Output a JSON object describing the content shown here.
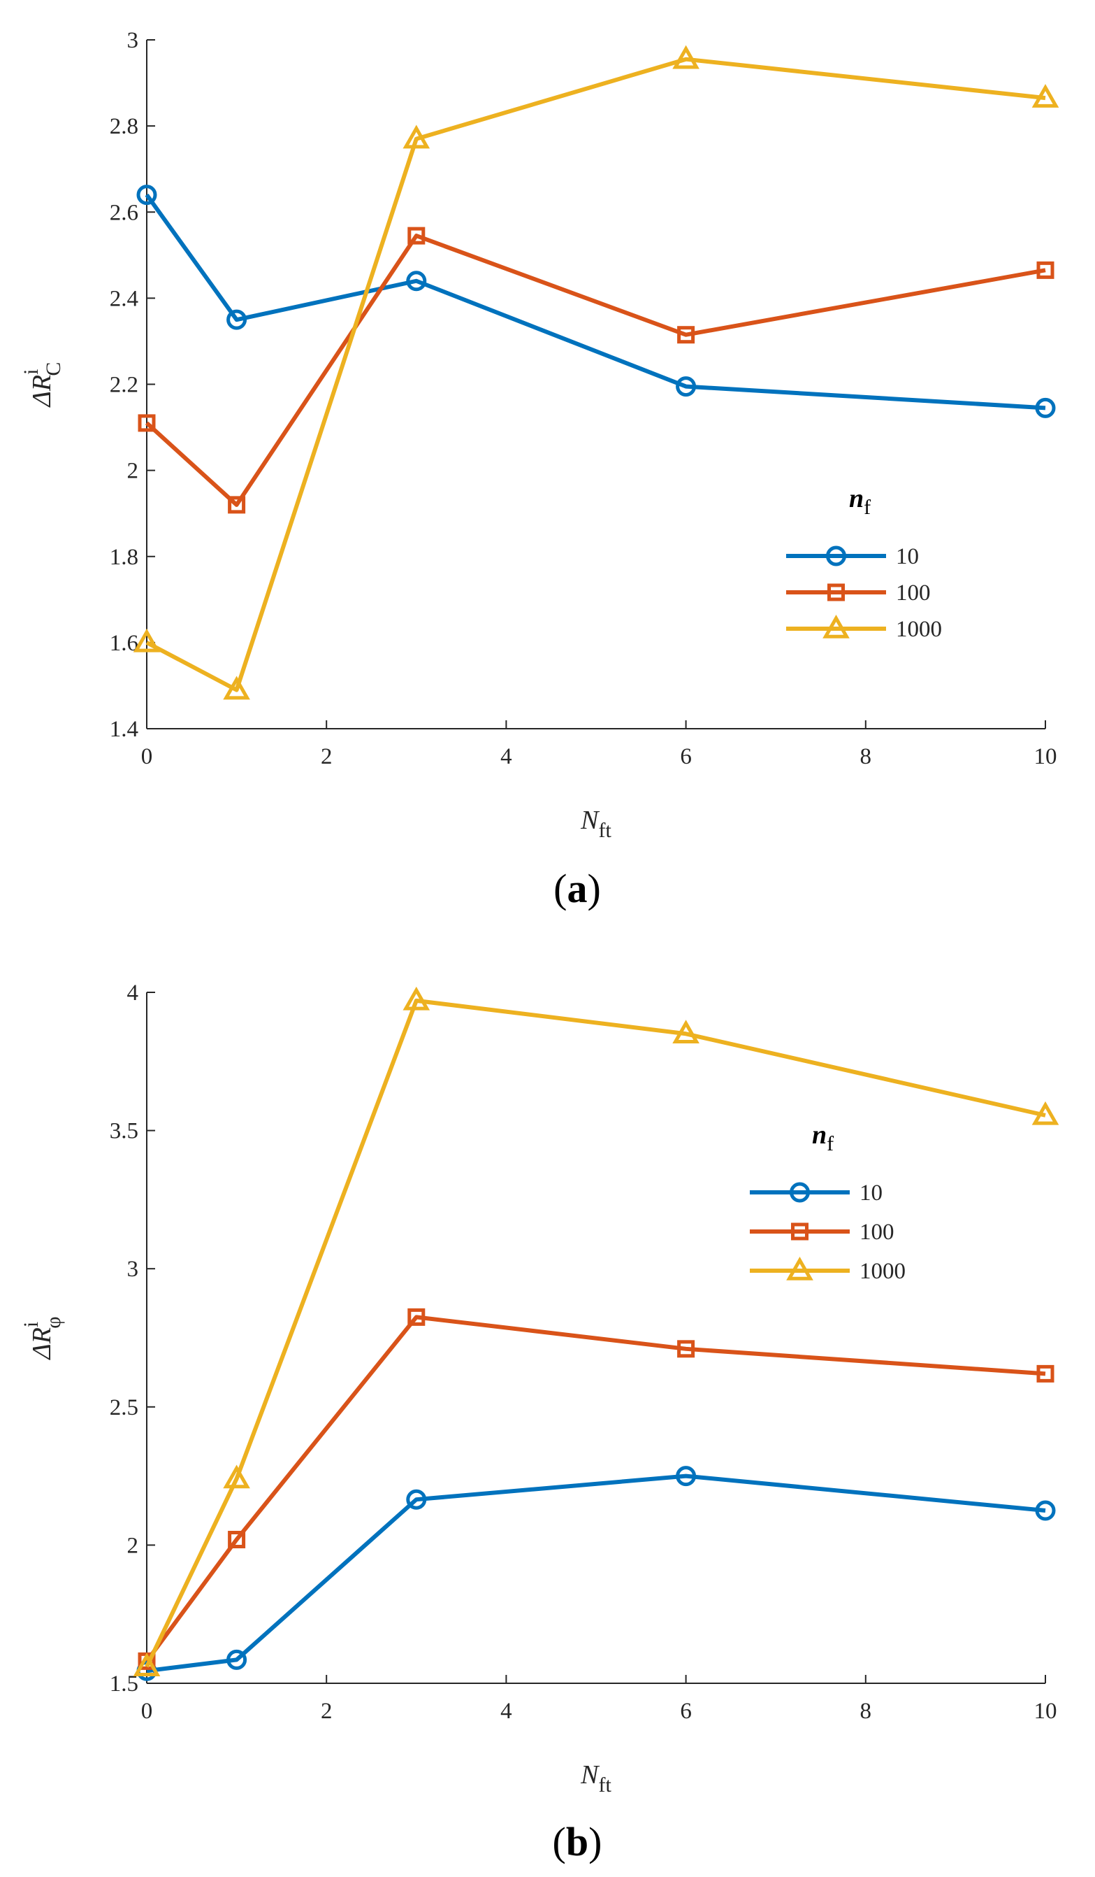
{
  "colors": {
    "series_10": "#0072BD",
    "series_100": "#D95319",
    "series_1000": "#EDB120",
    "axis": "#262626"
  },
  "chart_data": [
    {
      "type": "line",
      "panel_letter": "a",
      "ylabel": {
        "main": "ΔR",
        "sup": "i",
        "sub": "C"
      },
      "xlabel": {
        "main": "N",
        "sub": "ft"
      },
      "xlim": [
        0,
        10
      ],
      "ylim": [
        1.4,
        3.0
      ],
      "x_ticks": [
        "0",
        "2",
        "4",
        "6",
        "8",
        "10"
      ],
      "y_ticks": [
        "1.4",
        "1.6",
        "1.8",
        "2",
        "2.2",
        "2.4",
        "2.6",
        "2.8",
        "3"
      ],
      "legend_title": {
        "main": "n",
        "sub": "f"
      },
      "legend_position": "middle-right",
      "x": [
        0,
        1,
        3,
        6,
        10
      ],
      "series": [
        {
          "name": "10",
          "marker": "circle",
          "values": [
            2.64,
            2.35,
            2.44,
            2.195,
            2.145
          ]
        },
        {
          "name": "100",
          "marker": "square",
          "values": [
            2.11,
            1.92,
            2.545,
            2.315,
            2.465
          ]
        },
        {
          "name": "1000",
          "marker": "triangle",
          "values": [
            1.6,
            1.49,
            2.77,
            2.955,
            2.865
          ]
        }
      ]
    },
    {
      "type": "line",
      "panel_letter": "b",
      "ylabel": {
        "main": "ΔR",
        "sup": "i",
        "sub": "φ"
      },
      "xlabel": {
        "main": "N",
        "sub": "ft"
      },
      "xlim": [
        0,
        10
      ],
      "ylim": [
        1.5,
        4.0
      ],
      "x_ticks": [
        "0",
        "2",
        "4",
        "6",
        "8",
        "10"
      ],
      "y_ticks": [
        "1.5",
        "2",
        "2.5",
        "3",
        "3.5",
        "4"
      ],
      "legend_title": {
        "main": "n",
        "sub": "f"
      },
      "legend_position": "top-right",
      "x": [
        0,
        1,
        3,
        6,
        10
      ],
      "series": [
        {
          "name": "10",
          "marker": "circle",
          "values": [
            1.545,
            1.585,
            2.165,
            2.25,
            2.125
          ]
        },
        {
          "name": "100",
          "marker": "square",
          "values": [
            1.58,
            2.02,
            2.825,
            2.71,
            2.62
          ]
        },
        {
          "name": "1000",
          "marker": "triangle",
          "values": [
            1.56,
            2.24,
            3.97,
            3.85,
            3.555
          ]
        }
      ]
    }
  ]
}
